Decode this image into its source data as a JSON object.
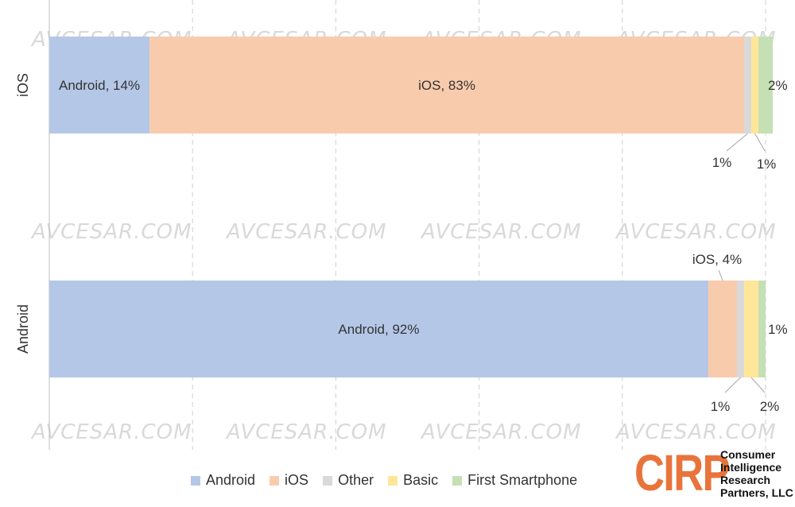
{
  "chart_data": {
    "type": "bar",
    "orientation": "horizontal",
    "stacked": true,
    "percent_scale": true,
    "xlim": [
      0,
      100
    ],
    "grid": "vertical-dashed",
    "legend_position": "bottom",
    "categories": [
      "iOS",
      "Android"
    ],
    "series": [
      {
        "name": "Android",
        "color": "#b4c7e7",
        "values": [
          14,
          92
        ]
      },
      {
        "name": "iOS",
        "color": "#f8cbad",
        "values": [
          83,
          4
        ]
      },
      {
        "name": "Other",
        "color": "#d9d9d9",
        "values": [
          1,
          1
        ]
      },
      {
        "name": "Basic",
        "color": "#ffe699",
        "values": [
          1,
          2
        ]
      },
      {
        "name": "First Smartphone",
        "color": "#c5e0b4",
        "values": [
          2,
          1
        ]
      }
    ],
    "data_labels": [
      [
        "Android, 14%",
        "iOS, 83%",
        "1%",
        "1%",
        "2%"
      ],
      [
        "Android, 92%",
        "iOS, 4%",
        "1%",
        "2%",
        "1%"
      ]
    ]
  },
  "legend_title": "",
  "watermark": "AVCESAR.COM",
  "logo": {
    "mark": "CIRP",
    "lines": [
      "Consumer",
      "Intelligence",
      "Research",
      "Partners, LLC"
    ],
    "color": "#e8743b"
  }
}
